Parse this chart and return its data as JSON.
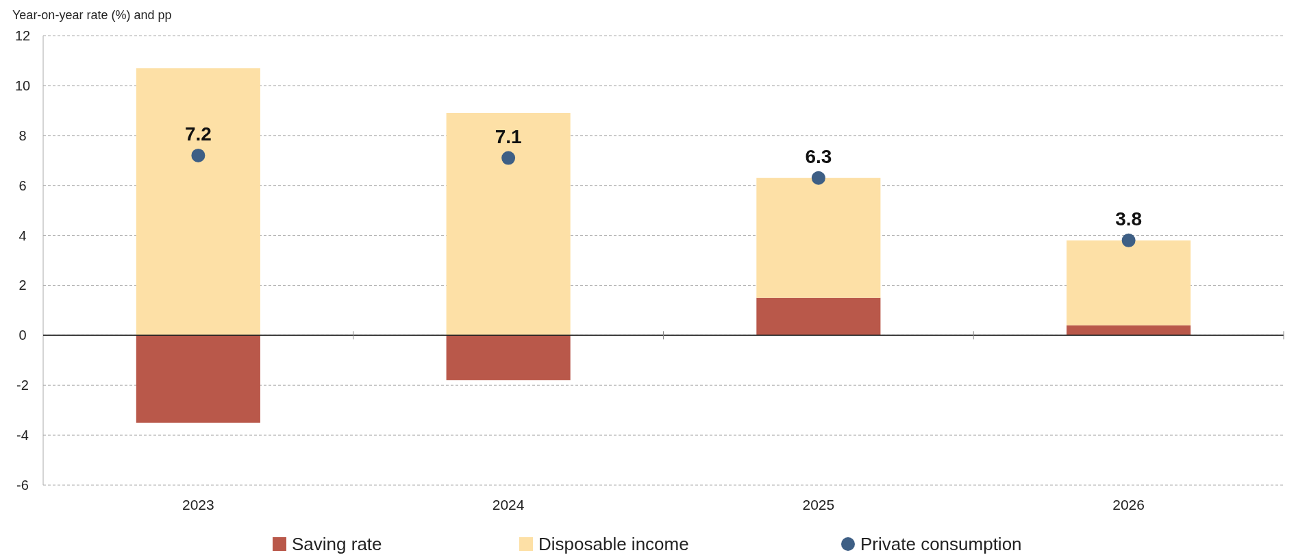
{
  "chart_data": {
    "type": "bar",
    "stacked": true,
    "ylabel": "Year-on-year rate (%) and pp",
    "categories": [
      "2023",
      "2024",
      "2025",
      "2026"
    ],
    "series": [
      {
        "name": "Saving rate",
        "color": "#b9584a",
        "values": [
          -3.5,
          -1.8,
          1.5,
          0.4
        ]
      },
      {
        "name": "Disposable income",
        "color": "#fde0a6",
        "values": [
          10.7,
          8.9,
          4.8,
          3.4
        ]
      },
      {
        "name": "Private consumption",
        "type": "scatter",
        "color": "#3e5f85",
        "values": [
          7.2,
          7.1,
          6.3,
          3.8
        ],
        "value_labels": [
          "7.2",
          "7.1",
          "6.3",
          "3.8"
        ]
      }
    ],
    "ylim": [
      -6,
      12
    ],
    "yticks": [
      -6,
      -4,
      -2,
      0,
      2,
      4,
      6,
      8,
      10,
      12
    ],
    "grid": "y",
    "legend": "bottom",
    "marker": "circle"
  }
}
